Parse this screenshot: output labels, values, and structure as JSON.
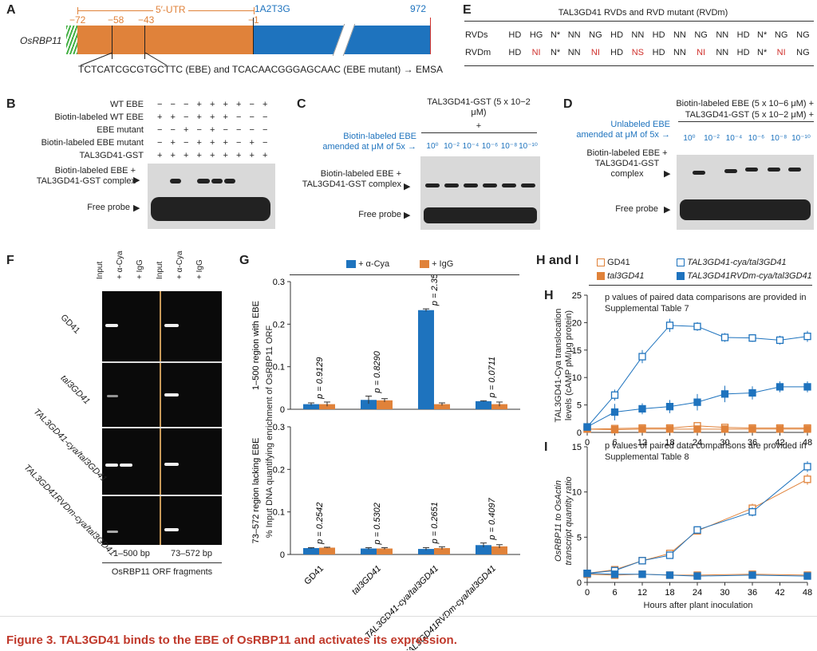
{
  "panels": {
    "a": "A",
    "b": "B",
    "c": "C",
    "d": "D",
    "e": "E",
    "f": "F",
    "g": "G",
    "hi": "H and I",
    "h": "H",
    "i": "I"
  },
  "panelA": {
    "gene": "OsRBP11",
    "utr_label": "5′-UTR",
    "positions": [
      "−72",
      "−58",
      "−43",
      "−1"
    ],
    "start_label": "1A2T3G",
    "end_label": "972",
    "seq_text": "TCTCATCGCGTGCTTC (EBE) and TCACAACGGGAGCAAC (EBE mutant) → EMSA"
  },
  "panelB": {
    "rows": [
      "WT EBE",
      "Biotin-labeled WT EBE",
      "EBE mutant",
      "Biotin-labeled EBE mutant",
      "TAL3GD41-GST"
    ],
    "signs": [
      [
        "−",
        "−",
        "−",
        "+",
        "+",
        "+",
        "+",
        "−",
        "+"
      ],
      [
        "+",
        "+",
        "−",
        "+",
        "+",
        "+",
        "−",
        "−",
        "−"
      ],
      [
        "−",
        "−",
        "+",
        "−",
        "+",
        "−",
        "−",
        "−",
        "−"
      ],
      [
        "−",
        "+",
        "−",
        "+",
        "+",
        "+",
        "−",
        "+",
        "−"
      ],
      [
        "+",
        "+",
        "+",
        "+",
        "+",
        "+",
        "+",
        "+",
        "+"
      ]
    ],
    "complex_label": "Biotin-labeled EBE + TAL3GD41-GST complex",
    "free_label": "Free probe"
  },
  "panelC": {
    "header": "TAL3GD41-GST (5 x 10−2 μM)",
    "plus": "+",
    "amend": "Biotin-labeled EBE amended at μM of 5x →",
    "conc": [
      "10⁰",
      "10⁻²",
      "10⁻⁴",
      "10⁻⁶",
      "10⁻⁸",
      "10⁻¹⁰"
    ],
    "complex_label": "Biotin-labeled EBE + TAL3GD41-GST complex",
    "free_label": "Free probe"
  },
  "panelD": {
    "header1": "Biotin-labeled EBE (5 x 10−6 μM) +",
    "header2": "TAL3GD41-GST (5 x 10−2 μM) +",
    "amend": "Unlabeled EBE amended at μM of 5x →",
    "conc": [
      "10⁰",
      "10⁻²",
      "10⁻⁴",
      "10⁻⁶",
      "10⁻⁸",
      "10⁻¹⁰"
    ],
    "complex_label": "Biotin-labeled EBE + TAL3GD41-GST complex",
    "free_label": "Free probe"
  },
  "panelE": {
    "title": "TAL3GD41 RVDs and RVD mutant (RVDm)",
    "rvds_label": "RVDs",
    "rvdm_label": "RVDm",
    "rvds": [
      "HD",
      "HG",
      "N*",
      "NN",
      "NG",
      "HD",
      "NN",
      "HD",
      "NN",
      "NG",
      "NN",
      "HD",
      "N*",
      "NG",
      "NG"
    ],
    "rvdm": [
      "HD",
      "NI",
      "N*",
      "NN",
      "NI",
      "HD",
      "NS",
      "HD",
      "NN",
      "NI",
      "NN",
      "HD",
      "N*",
      "NI",
      "NG"
    ],
    "rvdm_red": [
      false,
      true,
      false,
      false,
      true,
      false,
      true,
      false,
      false,
      true,
      false,
      false,
      false,
      true,
      false
    ]
  },
  "panelF": {
    "lanes": [
      "Input",
      "+ α-Cya",
      "+ IgG",
      "Input",
      "+ α-Cya",
      "+ IgG"
    ],
    "rows": [
      "GD41",
      "tal3GD41",
      "TAL3GD41-cya/tal3GD41",
      "TAL3GD41RVDm-cya/tal3GD41"
    ],
    "frag1": "1–500 bp",
    "frag2": "73–572 bp",
    "caption": "OsRBP11 ORF fragments"
  },
  "panelG": {
    "legend": [
      "+ α-Cya",
      "+ IgG"
    ],
    "ylabel": "% Input DNA quantifying enrichment of OsRBP11 ORF",
    "top_region": "1–500 region with EBE",
    "bottom_region": "73–572 region lacking EBE",
    "categories": [
      "GD41",
      "tal3GD41",
      "TAL3GD41-cya/tal3GD41",
      "TAL3GD41RVDm-cya/tal3GD41"
    ]
  },
  "panelHI": {
    "legend": [
      "GD41",
      "TAL3GD41-cya/tal3GD41",
      "tal3GD41",
      "TAL3GD41RVDm-cya/tal3GD41"
    ],
    "h_ylabel": "TAL3GD41-Cya translocation levels (cAMP pM/μg protein)",
    "h_note": "p values of paired data comparisons are provided in Supplemental Table 7",
    "i_ylabel": "OsRBP11 to OsActin transcript quantity ratio",
    "i_note": "p values of paired data comparisons are provided in Supplemental Table 8",
    "xlabel": "Hours after plant inoculation"
  },
  "caption": "Figure 3. TAL3GD41 binds to the EBE of OsRBP11 and activates its expression.",
  "chart_data": [
    {
      "type": "bar",
      "title": "",
      "ylabel": "1–500 region with EBE",
      "ylim": [
        0,
        0.3
      ],
      "yticks": [
        0,
        0.1,
        0.2,
        0.3
      ],
      "categories": [
        "GD41",
        "tal3GD41",
        "TAL3GD41-cya/tal3GD41",
        "TAL3GD41RVDm-cya/tal3GD41"
      ],
      "series": [
        {
          "name": "+ α-Cya",
          "values": [
            0.012,
            0.022,
            0.233,
            0.019
          ],
          "err": [
            0.003,
            0.009,
            0.003,
            0.001
          ]
        },
        {
          "name": "+ IgG",
          "values": [
            0.012,
            0.021,
            0.012,
            0.012
          ],
          "err": [
            0.005,
            0.004,
            0.003,
            0.005
          ]
        }
      ],
      "pvalues": [
        "p = 0.9129",
        "p = 0.8290",
        "p = 2.35 x 10⁻⁵",
        "p = 0.0711"
      ]
    },
    {
      "type": "bar",
      "title": "",
      "ylabel": "73–572 region lacking EBE",
      "ylim": [
        0,
        0.3
      ],
      "yticks": [
        0,
        0.1,
        0.2,
        0.3
      ],
      "categories": [
        "GD41",
        "tal3GD41",
        "TAL3GD41-cya/tal3GD41",
        "TAL3GD41RVDm-cya/tal3GD41"
      ],
      "series": [
        {
          "name": "+ α-Cya",
          "values": [
            0.015,
            0.014,
            0.013,
            0.022
          ],
          "err": [
            0.001,
            0.002,
            0.003,
            0.005
          ]
        },
        {
          "name": "+ IgG",
          "values": [
            0.016,
            0.014,
            0.015,
            0.019
          ],
          "err": [
            0.001,
            0.002,
            0.003,
            0.004
          ]
        }
      ],
      "pvalues": [
        "p = 0.2542",
        "p = 0.5302",
        "p = 0.2651",
        "p = 0.4097"
      ]
    },
    {
      "type": "line",
      "title": "",
      "ylabel": "TAL3GD41-Cya translocation levels (cAMP pM/μg protein)",
      "x": [
        0,
        6,
        12,
        18,
        24,
        30,
        36,
        42,
        48
      ],
      "xticks": [
        0,
        6,
        12,
        18,
        24,
        30,
        36,
        42,
        48
      ],
      "ylim": [
        0,
        25
      ],
      "yticks": [
        0,
        5,
        10,
        15,
        20,
        25
      ],
      "series": [
        {
          "name": "GD41",
          "values": [
            0.6,
            0.7,
            0.8,
            0.8,
            1.2,
            0.9,
            0.8,
            0.8,
            0.8
          ],
          "err": [
            0.3,
            0.4,
            0.4,
            0.5,
            0.6,
            0.5,
            0.5,
            0.5,
            0.5
          ],
          "color": "#e0823a",
          "filled": false
        },
        {
          "name": "tal3GD41",
          "values": [
            0.6,
            0.5,
            0.6,
            0.6,
            0.6,
            0.6,
            0.6,
            0.6,
            0.6
          ],
          "err": [
            0.2,
            0.2,
            0.2,
            0.2,
            0.2,
            0.2,
            0.2,
            0.2,
            0.2
          ],
          "color": "#e0823a",
          "filled": true
        },
        {
          "name": "TAL3GD41-cya/tal3GD41",
          "values": [
            1.0,
            6.8,
            13.8,
            19.5,
            19.3,
            17.3,
            17.2,
            16.8,
            17.5
          ],
          "err": [
            0.5,
            1.0,
            1.2,
            1.2,
            0.8,
            0.8,
            0.7,
            0.8,
            1.0
          ],
          "color": "#1e73be",
          "filled": false
        },
        {
          "name": "TAL3GD41RVDm-cya/tal3GD41",
          "values": [
            1.0,
            3.7,
            4.3,
            4.7,
            5.5,
            7.0,
            7.2,
            8.3,
            8.3
          ],
          "err": [
            0.4,
            1.5,
            1.0,
            1.2,
            1.5,
            1.5,
            1.2,
            1.0,
            1.0
          ],
          "color": "#1e73be",
          "filled": true
        }
      ]
    },
    {
      "type": "line",
      "title": "",
      "ylabel": "OsRBP11 to OsActin transcript quantity ratio",
      "xlabel": "Hours after plant inoculation",
      "x": [
        0,
        6,
        12,
        18,
        24,
        30,
        36,
        42,
        48
      ],
      "xticks": [
        0,
        6,
        12,
        18,
        24,
        30,
        36,
        42,
        48
      ],
      "ylim": [
        0,
        15
      ],
      "yticks": [
        0,
        5,
        10,
        15
      ],
      "series": [
        {
          "name": "GD41",
          "values": [
            1.0,
            1.4,
            2.4,
            3.2,
            5.7,
            8.2,
            11.4
          ],
          "x": [
            0,
            6,
            12,
            18,
            24,
            36,
            48
          ],
          "err": [
            0.2,
            0.3,
            0.3,
            0.3,
            0.4,
            0.5,
            0.6
          ],
          "color": "#e0823a",
          "filled": false
        },
        {
          "name": "tal3GD41",
          "values": [
            0.9,
            0.8,
            0.9,
            0.8,
            0.8,
            0.9,
            0.8
          ],
          "x": [
            0,
            6,
            12,
            18,
            24,
            36,
            48
          ],
          "err": [
            0.2,
            0.2,
            0.2,
            0.2,
            0.2,
            0.2,
            0.2
          ],
          "color": "#e0823a",
          "filled": true
        },
        {
          "name": "TAL3GD41-cya/tal3GD41",
          "values": [
            1.0,
            1.3,
            2.4,
            3.0,
            5.8,
            7.8,
            12.8
          ],
          "x": [
            0,
            6,
            12,
            18,
            24,
            36,
            48
          ],
          "err": [
            0.2,
            0.3,
            0.3,
            0.3,
            0.4,
            0.5,
            0.6
          ],
          "color": "#1e73be",
          "filled": false
        },
        {
          "name": "TAL3GD41RVDm-cya/tal3GD41",
          "values": [
            1.0,
            0.9,
            0.9,
            0.8,
            0.7,
            0.8,
            0.7
          ],
          "x": [
            0,
            6,
            12,
            18,
            24,
            36,
            48
          ],
          "err": [
            0.2,
            0.2,
            0.2,
            0.2,
            0.2,
            0.2,
            0.2
          ],
          "color": "#1e73be",
          "filled": true
        }
      ]
    }
  ]
}
